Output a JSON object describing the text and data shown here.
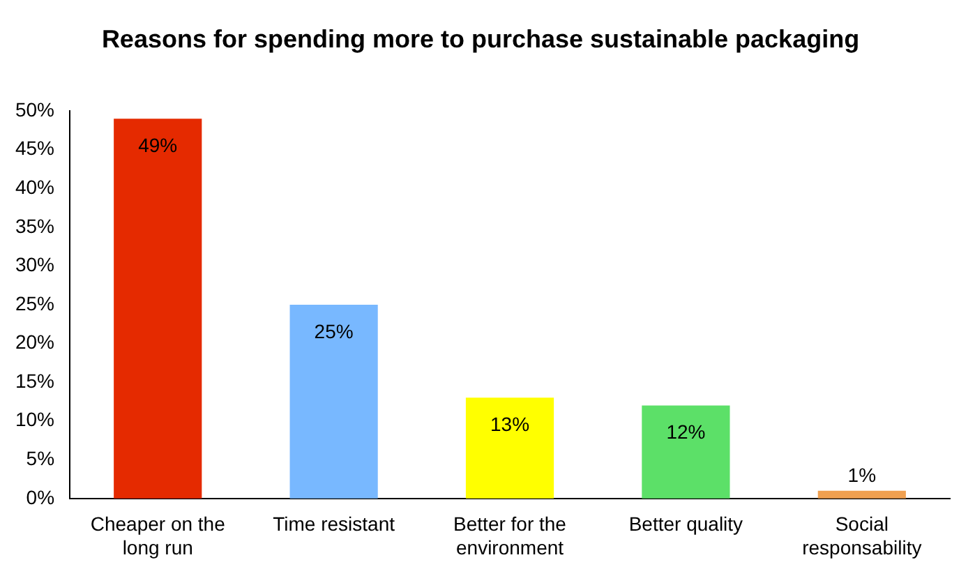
{
  "chart_data": {
    "type": "bar",
    "title": "Reasons for spending more to purchase sustainable packaging",
    "categories": [
      "Cheaper on the long run",
      "Time resistant",
      "Better for the environment",
      "Better quality",
      "Social responsability"
    ],
    "values": [
      49,
      25,
      13,
      12,
      1
    ],
    "colors": [
      "#e52a00",
      "#78b8ff",
      "#ffff00",
      "#5ce068",
      "#f0a050"
    ],
    "value_labels": [
      "49%",
      "25%",
      "13%",
      "12%",
      "1%"
    ],
    "ylim": [
      0,
      50
    ],
    "yticks": [
      {
        "value": 0,
        "label": "0%"
      },
      {
        "value": 5,
        "label": "5%"
      },
      {
        "value": 10,
        "label": "10%"
      },
      {
        "value": 15,
        "label": "15%"
      },
      {
        "value": 20,
        "label": "20%"
      },
      {
        "value": 25,
        "label": "25%"
      },
      {
        "value": 30,
        "label": "30%"
      },
      {
        "value": 35,
        "label": "35%"
      },
      {
        "value": 40,
        "label": "40%"
      },
      {
        "value": 45,
        "label": "45%"
      },
      {
        "value": 50,
        "label": "50%"
      }
    ],
    "grid": false,
    "legend": false
  }
}
